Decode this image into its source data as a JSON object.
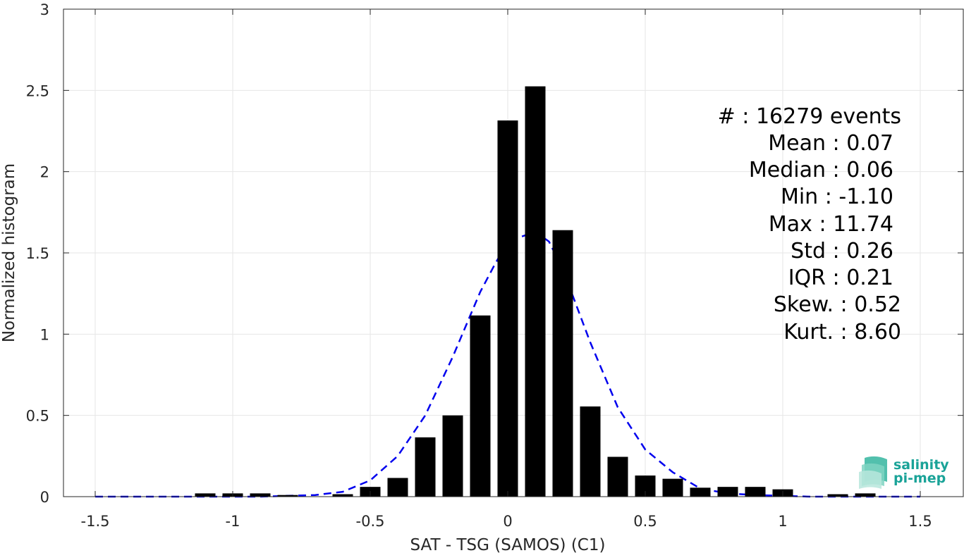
{
  "chart_data": {
    "type": "bar",
    "xlabel": "SAT - TSG (SAMOS) (C1)",
    "ylabel": "Normalized histogram",
    "xlim": [
      -1.5,
      1.5
    ],
    "ylim": [
      0,
      3
    ],
    "xticks": [
      "-1.5",
      "-1",
      "-0.5",
      "0",
      "0.5",
      "1",
      "1.5"
    ],
    "xtick_values": [
      -1.5,
      -1,
      -0.5,
      0,
      0.5,
      1,
      1.5
    ],
    "yticks": [
      "0",
      "0.5",
      "1",
      "1.5",
      "2",
      "2.5",
      "3"
    ],
    "ytick_values": [
      0,
      0.5,
      1,
      1.5,
      2,
      2.5,
      3
    ],
    "grid": true,
    "bars": {
      "x": [
        -1.1,
        -1.0,
        -0.9,
        -0.8,
        -0.6,
        -0.5,
        -0.4,
        -0.3,
        -0.2,
        -0.1,
        0.0,
        0.1,
        0.2,
        0.3,
        0.4,
        0.5,
        0.6,
        0.7,
        0.8,
        0.9,
        1.0,
        1.2,
        1.3
      ],
      "values": [
        0.02,
        0.02,
        0.02,
        0.01,
        0.015,
        0.06,
        0.115,
        0.365,
        0.5,
        1.115,
        2.315,
        2.525,
        1.64,
        0.555,
        0.245,
        0.13,
        0.11,
        0.055,
        0.06,
        0.06,
        0.045,
        0.015,
        0.02
      ],
      "color": "#000000"
    },
    "fit": {
      "style": "dashed",
      "color": "#0000ee",
      "x": [
        -1.5,
        -1.4,
        -1.3,
        -1.2,
        -1.1,
        -1.0,
        -0.9,
        -0.8,
        -0.7,
        -0.6,
        -0.5,
        -0.4,
        -0.3,
        -0.2,
        -0.1,
        -0.05,
        0.0,
        0.05,
        0.1,
        0.15,
        0.2,
        0.3,
        0.4,
        0.5,
        0.6,
        0.7,
        0.8,
        0.9,
        1.0,
        1.1,
        1.2,
        1.3,
        1.4,
        1.5
      ],
      "values": [
        0.0,
        0.0,
        0.0,
        0.0,
        0.0,
        0.0,
        0.0,
        0.005,
        0.01,
        0.03,
        0.1,
        0.25,
        0.5,
        0.86,
        1.26,
        1.42,
        1.57,
        1.6,
        1.63,
        1.57,
        1.4,
        0.95,
        0.55,
        0.29,
        0.15,
        0.05,
        0.02,
        0.01,
        0.005,
        0.0,
        0.0,
        0.0,
        0.0,
        0.0
      ]
    }
  },
  "stats": [
    {
      "label": "#  : 16279 events"
    },
    {
      "label": "Mean : 0.07"
    },
    {
      "label": "Median : 0.06"
    },
    {
      "label": "Min : -1.10"
    },
    {
      "label": "Max : 11.74"
    },
    {
      "label": "Std : 0.26"
    },
    {
      "label": "IQR : 0.21"
    },
    {
      "label": "Skew. : 0.52"
    },
    {
      "label": "Kurt. : 8.60"
    }
  ],
  "logo": {
    "line1": "salinity",
    "line2": "pi-mep",
    "color": "#1aa398"
  }
}
